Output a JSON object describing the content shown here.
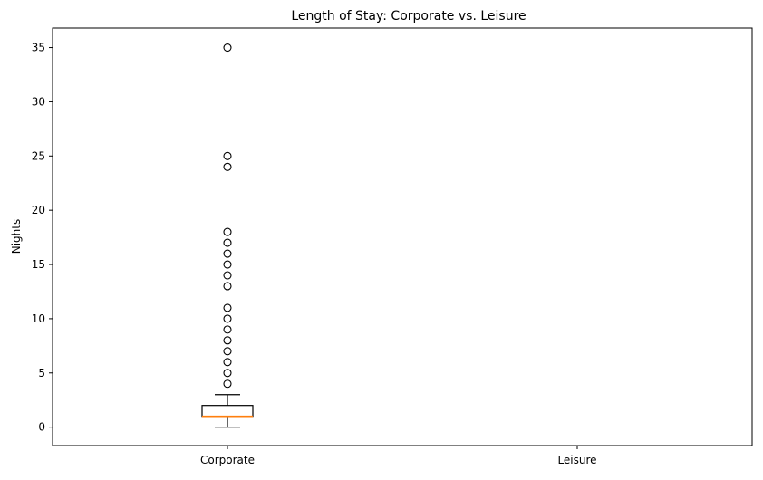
{
  "chart_data": {
    "type": "boxplot",
    "title": "Length of Stay: Corporate vs. Leisure",
    "xlabel": "",
    "ylabel": "Nights",
    "ylim": [
      -1.7,
      36.8
    ],
    "yticks": [
      0,
      5,
      10,
      15,
      20,
      25,
      30,
      35
    ],
    "categories": [
      "Corporate",
      "Leisure"
    ],
    "grid": false,
    "legend": false,
    "colors": {
      "box": "#000000",
      "median": "#ff7f0e",
      "outlier": "#000000",
      "axis": "#000000"
    },
    "series": [
      {
        "category": "Corporate",
        "whisker_low": 0,
        "q1": 1,
        "median": 1,
        "q3": 2,
        "whisker_high": 3,
        "outliers": [
          4,
          5,
          6,
          7,
          8,
          9,
          10,
          11,
          13,
          14,
          15,
          16,
          17,
          18,
          24,
          25,
          35
        ]
      },
      {
        "category": "Leisure",
        "whisker_low": null,
        "q1": null,
        "median": null,
        "q3": null,
        "whisker_high": null,
        "outliers": []
      }
    ]
  }
}
